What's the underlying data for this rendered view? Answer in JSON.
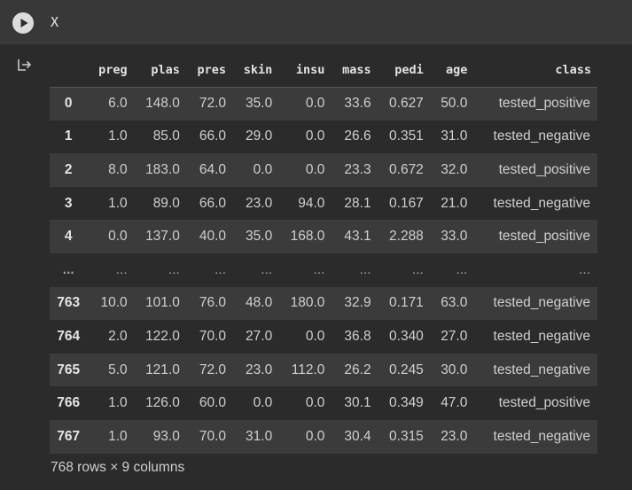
{
  "cell": {
    "run_button_icon": "play-icon",
    "code": "X"
  },
  "output": {
    "icon": "output-arrow-icon",
    "table": {
      "columns": [
        "preg",
        "plas",
        "pres",
        "skin",
        "insu",
        "mass",
        "pedi",
        "age",
        "class"
      ],
      "rows": [
        {
          "index": "0",
          "cells": [
            "6.0",
            "148.0",
            "72.0",
            "35.0",
            "0.0",
            "33.6",
            "0.627",
            "50.0",
            "tested_positive"
          ]
        },
        {
          "index": "1",
          "cells": [
            "1.0",
            "85.0",
            "66.0",
            "29.0",
            "0.0",
            "26.6",
            "0.351",
            "31.0",
            "tested_negative"
          ]
        },
        {
          "index": "2",
          "cells": [
            "8.0",
            "183.0",
            "64.0",
            "0.0",
            "0.0",
            "23.3",
            "0.672",
            "32.0",
            "tested_positive"
          ]
        },
        {
          "index": "3",
          "cells": [
            "1.0",
            "89.0",
            "66.0",
            "23.0",
            "94.0",
            "28.1",
            "0.167",
            "21.0",
            "tested_negative"
          ]
        },
        {
          "index": "4",
          "cells": [
            "0.0",
            "137.0",
            "40.0",
            "35.0",
            "168.0",
            "43.1",
            "2.288",
            "33.0",
            "tested_positive"
          ]
        },
        {
          "index": "...",
          "cells": [
            "...",
            "...",
            "...",
            "...",
            "...",
            "...",
            "...",
            "...",
            "..."
          ],
          "ellipsis": true
        },
        {
          "index": "763",
          "cells": [
            "10.0",
            "101.0",
            "76.0",
            "48.0",
            "180.0",
            "32.9",
            "0.171",
            "63.0",
            "tested_negative"
          ]
        },
        {
          "index": "764",
          "cells": [
            "2.0",
            "122.0",
            "70.0",
            "27.0",
            "0.0",
            "36.8",
            "0.340",
            "27.0",
            "tested_negative"
          ]
        },
        {
          "index": "765",
          "cells": [
            "5.0",
            "121.0",
            "72.0",
            "23.0",
            "112.0",
            "26.2",
            "0.245",
            "30.0",
            "tested_negative"
          ]
        },
        {
          "index": "766",
          "cells": [
            "1.0",
            "126.0",
            "60.0",
            "0.0",
            "0.0",
            "30.1",
            "0.349",
            "47.0",
            "tested_positive"
          ]
        },
        {
          "index": "767",
          "cells": [
            "1.0",
            "93.0",
            "70.0",
            "31.0",
            "0.0",
            "30.4",
            "0.315",
            "23.0",
            "tested_negative"
          ]
        }
      ]
    },
    "summary": "768 rows × 9 columns"
  }
}
